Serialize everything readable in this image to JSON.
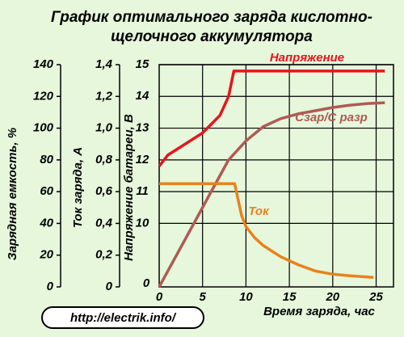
{
  "chart_data": {
    "type": "line",
    "title": [
      "График оптимального заряда кислотно-",
      "щелочного аккумулятора"
    ],
    "x_label": "Время заряда, час",
    "y_label": "Зарядная емкость, %",
    "y2_label": "Ток заряда, А",
    "y3_label": "Напряжение батареи, В",
    "xlim": [
      0,
      27
    ],
    "xticks": [
      0,
      5,
      10,
      15,
      20,
      25
    ],
    "ylim": [
      0,
      140
    ],
    "yticks": [
      0,
      20,
      40,
      60,
      80,
      100,
      120,
      140
    ],
    "y2lim": [
      0,
      1.4
    ],
    "y2ticks": [
      0,
      {
        "value": 0.2,
        "label": "0,2"
      },
      {
        "value": 0.4,
        "label": "0,4"
      },
      {
        "value": 0.6,
        "label": "0,6"
      },
      {
        "value": 0.8,
        "label": "0,8"
      },
      {
        "value": 1.0,
        "label": "1,0"
      },
      {
        "value": 1.2,
        "label": "1,2"
      },
      {
        "value": 1.4,
        "label": "1,4"
      }
    ],
    "y3lim": [
      10,
      15
    ],
    "y3ticks": [
      10,
      11,
      12,
      13,
      14,
      15
    ],
    "y3_origin_label": "0",
    "grid": true,
    "watermark": "http://electrik.info/",
    "series": [
      {
        "name": "Напряжение",
        "color": "#e8141c",
        "axis": "y3",
        "x": [
          0,
          1,
          3,
          5,
          7,
          8,
          8.6,
          26
        ],
        "values": [
          11.8,
          12.15,
          12.5,
          12.85,
          13.4,
          14.0,
          14.8,
          14.8
        ]
      },
      {
        "name": "Сзар/С разр",
        "color": "#b05a55",
        "axis": "y",
        "x": [
          0,
          2,
          4,
          6,
          8,
          10,
          12,
          14,
          16,
          18,
          20,
          22,
          24,
          26
        ],
        "values": [
          0,
          20,
          40,
          60,
          80,
          92,
          101,
          106,
          109,
          111,
          113,
          114.5,
          115.5,
          116
        ]
      },
      {
        "name": "Ток",
        "color": "#e8821c",
        "axis": "y2",
        "x": [
          0,
          8.7,
          9.5,
          10,
          11,
          12,
          14,
          16,
          18,
          20,
          22,
          24.7
        ],
        "values": [
          0.65,
          0.65,
          0.45,
          0.38,
          0.31,
          0.26,
          0.19,
          0.14,
          0.1,
          0.08,
          0.07,
          0.06
        ]
      }
    ]
  }
}
